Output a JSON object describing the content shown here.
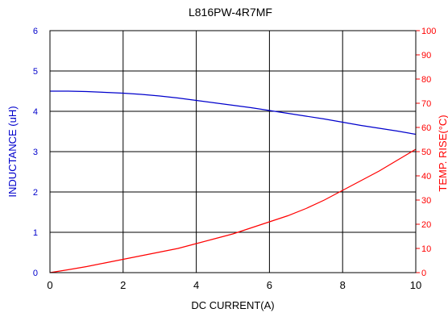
{
  "chart_data": {
    "type": "line",
    "title": "L816PW-4R7MF",
    "xlabel": "DC CURRENT(A)",
    "ylabel_left": "INDUCTANCE (uH)",
    "ylabel_right": "TEMP. RISE(°C)",
    "xlim": [
      0,
      10
    ],
    "ylim_left": [
      0,
      6
    ],
    "ylim_right": [
      0,
      100
    ],
    "x_ticks": [
      "0",
      "2",
      "4",
      "6",
      "8",
      "10"
    ],
    "y_left_ticks": [
      "0",
      "1",
      "2",
      "3",
      "4",
      "5",
      "6"
    ],
    "y_right_ticks": [
      "0",
      "10",
      "20",
      "30",
      "40",
      "50",
      "60",
      "70",
      "80",
      "90",
      "100"
    ],
    "grid": true,
    "colors": {
      "left": "#0000cc",
      "right": "#ff0000",
      "grid": "#000000"
    },
    "series": [
      {
        "axis": "left",
        "color": "#0000cc",
        "x": [
          0,
          0.5,
          1,
          1.5,
          2,
          2.5,
          3,
          3.5,
          4,
          4.5,
          5,
          5.5,
          6,
          6.5,
          7,
          7.5,
          8,
          8.5,
          9,
          9.5,
          10
        ],
        "y": [
          4.5,
          4.5,
          4.49,
          4.47,
          4.45,
          4.42,
          4.38,
          4.33,
          4.27,
          4.21,
          4.15,
          4.09,
          4.02,
          3.95,
          3.88,
          3.81,
          3.73,
          3.65,
          3.58,
          3.51,
          3.43
        ]
      },
      {
        "axis": "right",
        "color": "#ff0000",
        "x": [
          0,
          0.5,
          1,
          1.5,
          2,
          2.5,
          3,
          3.5,
          4,
          4.5,
          5,
          5.5,
          6,
          6.5,
          7,
          7.5,
          8,
          8.5,
          9,
          9.5,
          10
        ],
        "y": [
          0,
          1.2,
          2.5,
          4,
          5.5,
          7,
          8.5,
          10,
          12,
          14,
          16,
          18.5,
          21,
          23.5,
          26.5,
          30,
          34,
          38,
          42,
          46.5,
          51
        ]
      }
    ]
  }
}
